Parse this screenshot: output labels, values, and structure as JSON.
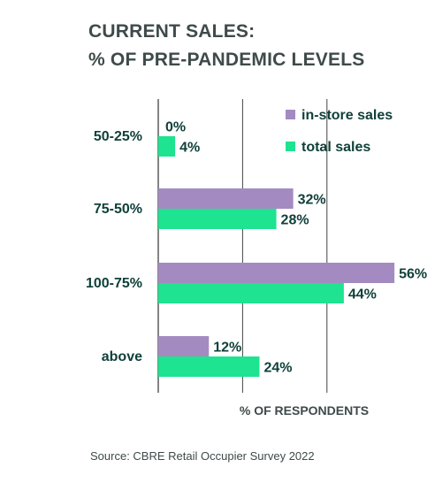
{
  "title": {
    "line1": "CURRENT SALES:",
    "line2": "% OF PRE-PANDEMIC LEVELS"
  },
  "source": "Source: CBRE Retail Occupier Survey 2022",
  "colors": {
    "in_store": "#a38bc1",
    "total": "#1ee390",
    "text": "#10403a",
    "title": "#3f4a4a",
    "axis": "#333333",
    "grid": "#444444"
  },
  "chart_data": {
    "type": "bar",
    "orientation": "horizontal",
    "categories": [
      "50-25%",
      "75-50%",
      "100-75%",
      "above"
    ],
    "series": [
      {
        "name": "in-store sales",
        "values": [
          0,
          32,
          56,
          12
        ],
        "labels": [
          "0%",
          "32%",
          "56%",
          "12%"
        ]
      },
      {
        "name": "total sales",
        "values": [
          4,
          28,
          44,
          24
        ],
        "labels": [
          "4%",
          "28%",
          "44%",
          "24%"
        ]
      }
    ],
    "xlabel": "% OF RESPONDENTS",
    "xlim": [
      0,
      60
    ],
    "grid": true,
    "legend_position": "top-right"
  }
}
